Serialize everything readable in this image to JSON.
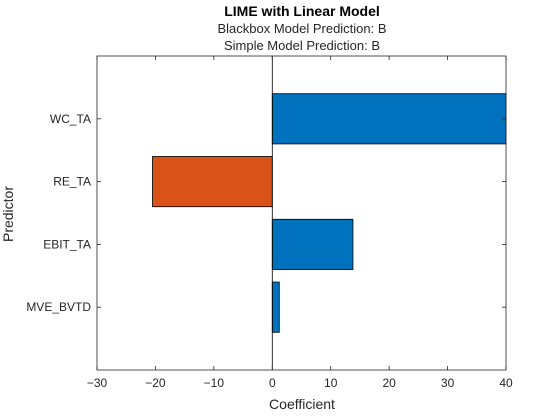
{
  "chart_data": {
    "type": "bar",
    "orientation": "horizontal",
    "title": "LIME with Linear Model",
    "subtitle_lines": [
      "Blackbox Model Prediction: B",
      "Simple Model Prediction: B"
    ],
    "xlabel": "Coefficient",
    "ylabel": "Predictor",
    "categories": [
      "MVE_BVTD",
      "EBIT_TA",
      "RE_TA",
      "WC_TA"
    ],
    "values": [
      1.2,
      13.8,
      -20.5,
      40
    ],
    "xlim": [
      -30,
      40
    ],
    "xticks": [
      -30,
      -20,
      -10,
      0,
      10,
      20,
      30,
      40
    ],
    "grid": false,
    "legend": "none",
    "colors": {
      "positive": "#0072BD",
      "negative": "#D95319",
      "edge": "#000000"
    }
  }
}
